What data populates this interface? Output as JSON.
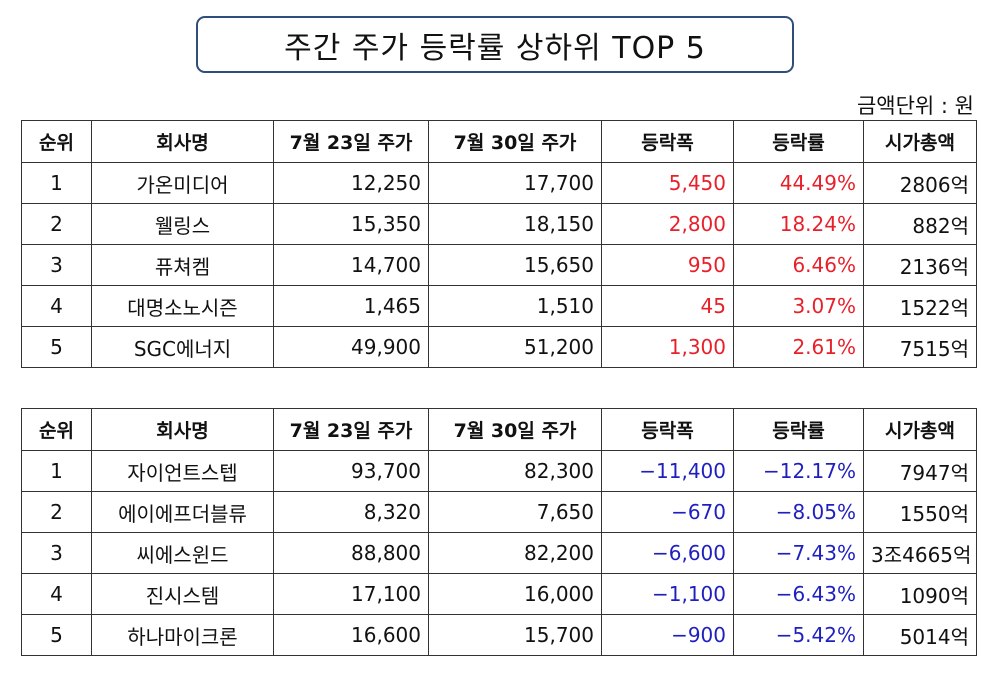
{
  "title": "주간 주가 등락률 상하위 TOP 5",
  "unit_note": "금액단위 : 원",
  "colors": {
    "up": "#e8202a",
    "down": "#1f1fc0",
    "title_border": "#2f4e7a"
  },
  "headers": [
    "순위",
    "회사명",
    "7월 23일 주가",
    "7월 30일 주가",
    "등락폭",
    "등락률",
    "시가총액"
  ],
  "top_gainers": [
    {
      "rank": "1",
      "company": "가온미디어",
      "price_0723": "12,250",
      "price_0730": "17,700",
      "change": "5,450",
      "rate": "44.49%",
      "market_cap": "2806억"
    },
    {
      "rank": "2",
      "company": "웰링스",
      "price_0723": "15,350",
      "price_0730": "18,150",
      "change": "2,800",
      "rate": "18.24%",
      "market_cap": "882억"
    },
    {
      "rank": "3",
      "company": "퓨쳐켐",
      "price_0723": "14,700",
      "price_0730": "15,650",
      "change": "950",
      "rate": "6.46%",
      "market_cap": "2136억"
    },
    {
      "rank": "4",
      "company": "대명소노시즌",
      "price_0723": "1,465",
      "price_0730": "1,510",
      "change": "45",
      "rate": "3.07%",
      "market_cap": "1522억"
    },
    {
      "rank": "5",
      "company": "SGC에너지",
      "price_0723": "49,900",
      "price_0730": "51,200",
      "change": "1,300",
      "rate": "2.61%",
      "market_cap": "7515억"
    }
  ],
  "top_losers": [
    {
      "rank": "1",
      "company": "자이언트스텝",
      "price_0723": "93,700",
      "price_0730": "82,300",
      "change": "−11,400",
      "rate": "−12.17%",
      "market_cap": "7947억"
    },
    {
      "rank": "2",
      "company": "에이에프더블류",
      "price_0723": "8,320",
      "price_0730": "7,650",
      "change": "−670",
      "rate": "−8.05%",
      "market_cap": "1550억"
    },
    {
      "rank": "3",
      "company": "씨에스윈드",
      "price_0723": "88,800",
      "price_0730": "82,200",
      "change": "−6,600",
      "rate": "−7.43%",
      "market_cap": "3조4665억"
    },
    {
      "rank": "4",
      "company": "진시스템",
      "price_0723": "17,100",
      "price_0730": "16,000",
      "change": "−1,100",
      "rate": "−6.43%",
      "market_cap": "1090억"
    },
    {
      "rank": "5",
      "company": "하나마이크론",
      "price_0723": "16,600",
      "price_0730": "15,700",
      "change": "−900",
      "rate": "−5.42%",
      "market_cap": "5014억"
    }
  ]
}
